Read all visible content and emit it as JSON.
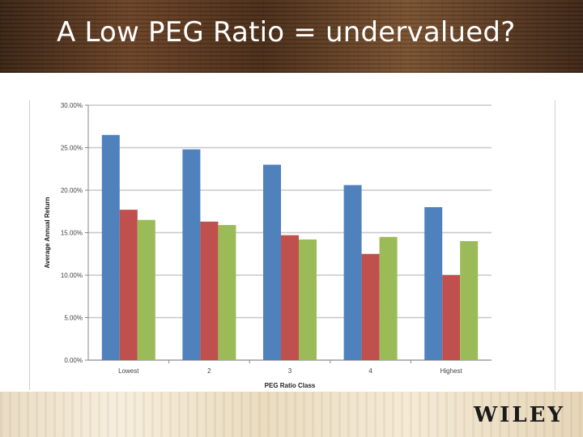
{
  "slide": {
    "title": "A Low PEG Ratio = undervalued?",
    "logo_text": "WILEY"
  },
  "colors": {
    "series": [
      "#4f81bd",
      "#c0504d",
      "#9bbb59"
    ],
    "grid": "#c8c8c8",
    "title_text": "#ffffff"
  },
  "chart_data": {
    "type": "bar",
    "categories": [
      "Lowest",
      "2",
      "3",
      "4",
      "Highest"
    ],
    "series": [
      {
        "values": [
          26.5,
          24.8,
          23.0,
          20.6,
          18.0
        ]
      },
      {
        "values": [
          17.7,
          16.3,
          14.7,
          12.5,
          10.0
        ]
      },
      {
        "values": [
          16.5,
          15.9,
          14.2,
          14.5,
          14.0
        ]
      }
    ],
    "xlabel": "PEG Ratio Class",
    "ylabel": "Average Annual Return",
    "ylim": [
      0,
      30
    ],
    "yticks": [
      "0.00%",
      "5.00%",
      "10.00%",
      "15.00%",
      "20.00%",
      "25.00%",
      "30.00%"
    ],
    "grid": true,
    "legend": "none"
  }
}
